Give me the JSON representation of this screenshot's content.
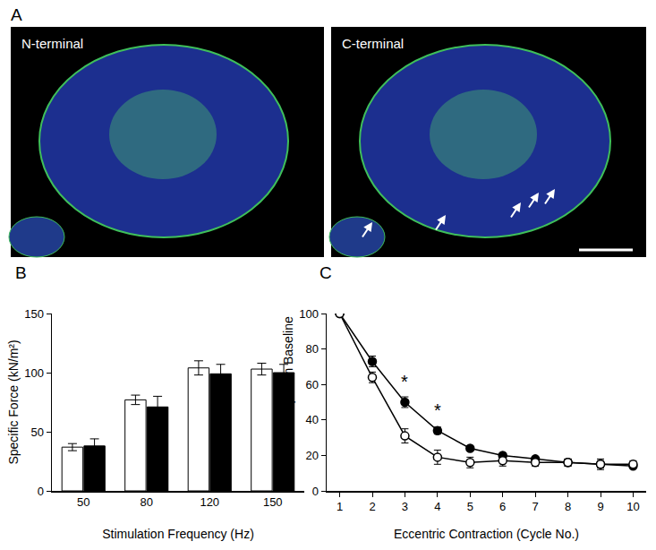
{
  "panel_a": {
    "panel": "A",
    "images": [
      {
        "label": "N-terminal"
      },
      {
        "label": "C-terminal"
      }
    ]
  },
  "chart_data": [
    {
      "panel": "B",
      "type": "bar",
      "x_label": "Stimulation Frequency (Hz)",
      "y_label": "Specific Force (kN/m²)",
      "categories": [
        "50",
        "80",
        "120",
        "150"
      ],
      "series": [
        {
          "color": "#ffffff",
          "values": [
            37,
            77,
            104,
            103
          ],
          "errors": [
            3,
            4,
            6,
            5
          ]
        },
        {
          "color": "#000000",
          "values": [
            38,
            71,
            99,
            100
          ],
          "errors": [
            6,
            9,
            8,
            7
          ]
        }
      ],
      "ylim": [
        0,
        150
      ],
      "yticks": [
        0,
        50,
        100,
        150
      ]
    },
    {
      "panel": "C",
      "type": "line",
      "x_label": "Eccentric Contraction (Cycle No.)",
      "y_label": "% of Force Drop from Baseline",
      "x": [
        1,
        2,
        3,
        4,
        5,
        6,
        7,
        8,
        9,
        10
      ],
      "series": [
        {
          "color": "#000000",
          "marker": "filled circle",
          "line_style": "solid",
          "values": [
            100,
            73,
            50,
            34,
            24,
            20,
            18,
            16,
            15,
            14
          ],
          "errors": [
            0,
            3,
            3,
            2,
            1,
            1,
            1,
            2,
            2,
            1
          ]
        },
        {
          "color": "#000000",
          "marker": "open circle",
          "line_style": "solid",
          "values": [
            100,
            64,
            31,
            19,
            16,
            17,
            16,
            16,
            15,
            15
          ],
          "errors": [
            0,
            3,
            4,
            4,
            3,
            3,
            2,
            2,
            3,
            2
          ]
        }
      ],
      "annotations": [
        {
          "x": 3,
          "y": 55,
          "text": "*"
        },
        {
          "x": 4,
          "y": 39,
          "text": "*"
        }
      ],
      "xlim": [
        0.6,
        10.4
      ],
      "xticks": [
        1,
        2,
        3,
        4,
        5,
        6,
        7,
        8,
        9,
        10
      ],
      "ylim": [
        0,
        100
      ],
      "yticks": [
        0,
        20,
        40,
        60,
        80,
        100
      ]
    }
  ]
}
